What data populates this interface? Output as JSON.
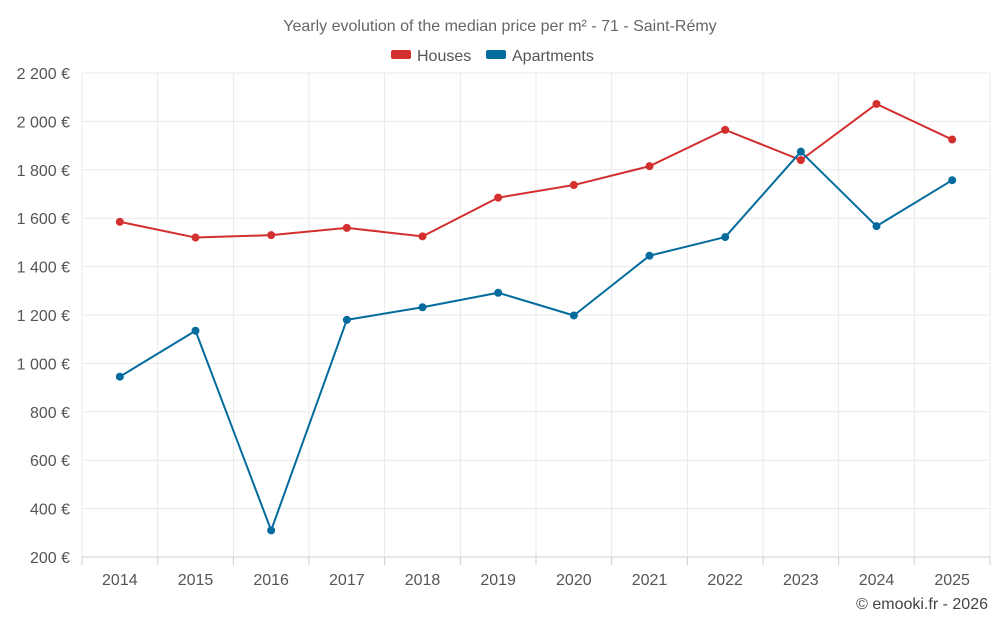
{
  "chart_data": {
    "type": "line",
    "title": "Yearly evolution of the median price per m² - 71 - Saint-Rémy",
    "categories": [
      "2014",
      "2015",
      "2016",
      "2017",
      "2018",
      "2019",
      "2020",
      "2021",
      "2022",
      "2023",
      "2024",
      "2025"
    ],
    "series": [
      {
        "name": "Houses",
        "color": "#d32f2f",
        "values": [
          1585,
          1520,
          1530,
          1560,
          1525,
          1685,
          1737,
          1815,
          1965,
          1840,
          2072,
          1925
        ]
      },
      {
        "name": "Apartments",
        "color": "#036c9c",
        "values": [
          945,
          1135,
          310,
          1180,
          1232,
          1292,
          1198,
          1445,
          1522,
          1875,
          1567,
          1757
        ]
      }
    ],
    "ylim": [
      200,
      2200
    ],
    "yticks": [
      200,
      400,
      600,
      800,
      1000,
      1200,
      1400,
      1600,
      1800,
      2000,
      2200
    ],
    "ytick_labels": [
      "200 €",
      "400 €",
      "600 €",
      "800 €",
      "1 000 €",
      "1 200 €",
      "1 400 €",
      "1 600 €",
      "1 800 €",
      "2 000 €",
      "2 200 €"
    ],
    "xlabel": "",
    "ylabel": "",
    "legend_position": "top-center",
    "grid": true
  },
  "credit": "© emooki.fr - 2026"
}
